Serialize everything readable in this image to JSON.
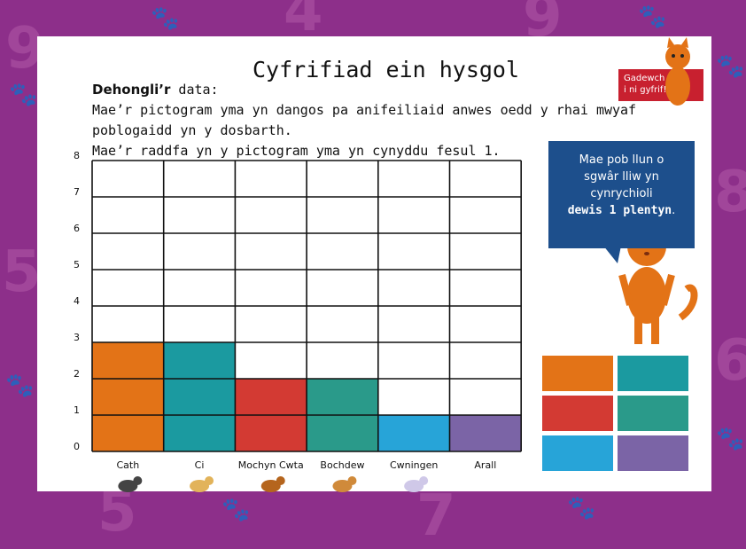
{
  "page": {
    "title": "Cyfrifiad ein hysgol",
    "intro_label": "Dehongli’r",
    "intro_rest": " data:",
    "line2": "Mae’r pictogram yma yn dangos pa anifeiliaid anwes oedd y rhai mwyaf",
    "line3": "poblogaidd yn y dosbarth.",
    "line4": "Mae’r raddfa yn y pictogram yma yn cynyddu fesul 1.",
    "speech_line1": "Mae pob llun o",
    "speech_line2": "sgwâr lliw yn",
    "speech_line3": "cynrychioli",
    "speech_bold": "dewis 1 plentyn",
    "speech_end": ".",
    "logo_line1": "Gadewch",
    "logo_line2": "i ni gyfrif!"
  },
  "colors": {
    "background": "#8d2f8a",
    "orange": "#e37317",
    "teal_dark": "#1b9aa0",
    "red": "#d33a33",
    "teal_green": "#2a9a8a",
    "blue": "#27a4d8",
    "purple": "#7b64a6",
    "speech": "#1d4f8c"
  },
  "chart_data": {
    "type": "bar",
    "categories": [
      "Cath",
      "Ci",
      "Mochyn Cwta",
      "Bochdew",
      "Cwningen",
      "Arall"
    ],
    "values": [
      3,
      3,
      2,
      2,
      1,
      1
    ],
    "bar_colors": [
      "#e37317",
      "#1b9aa0",
      "#d33a33",
      "#2a9a8a",
      "#27a4d8",
      "#7b64a6"
    ],
    "yticks": [
      "0",
      "1",
      "2",
      "3",
      "4",
      "5",
      "6",
      "7",
      "8"
    ],
    "ylim": [
      0,
      8
    ],
    "grid": true
  },
  "legend_swatches": [
    "#e37317",
    "#1b9aa0",
    "#d33a33",
    "#2a9a8a",
    "#27a4d8",
    "#7b64a6"
  ]
}
